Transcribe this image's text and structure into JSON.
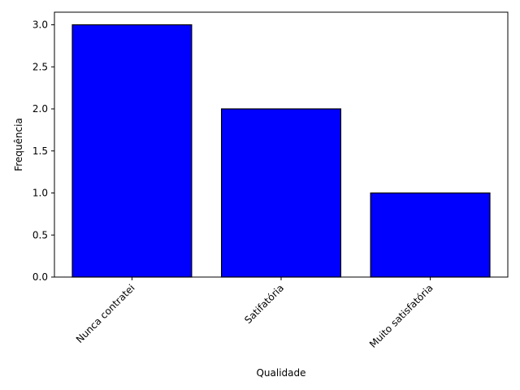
{
  "chart_data": {
    "type": "bar",
    "title": "",
    "xlabel": "Qualidade",
    "ylabel": "Frequência",
    "categories": [
      "Nunca contratei",
      "Satifatória",
      "Muito satisfatória"
    ],
    "values": [
      3,
      2,
      1
    ],
    "ylim": [
      0,
      3.15
    ],
    "yticks": [
      0.0,
      0.5,
      1.0,
      1.5,
      2.0,
      2.5,
      3.0
    ],
    "ytick_labels": [
      "0.0",
      "0.5",
      "1.0",
      "1.5",
      "2.0",
      "2.5",
      "3.0"
    ],
    "grid": false,
    "legend": "none",
    "colors": {
      "bar_fill": "#0000ff",
      "bar_edge": "#000000",
      "axis": "#000000"
    }
  }
}
